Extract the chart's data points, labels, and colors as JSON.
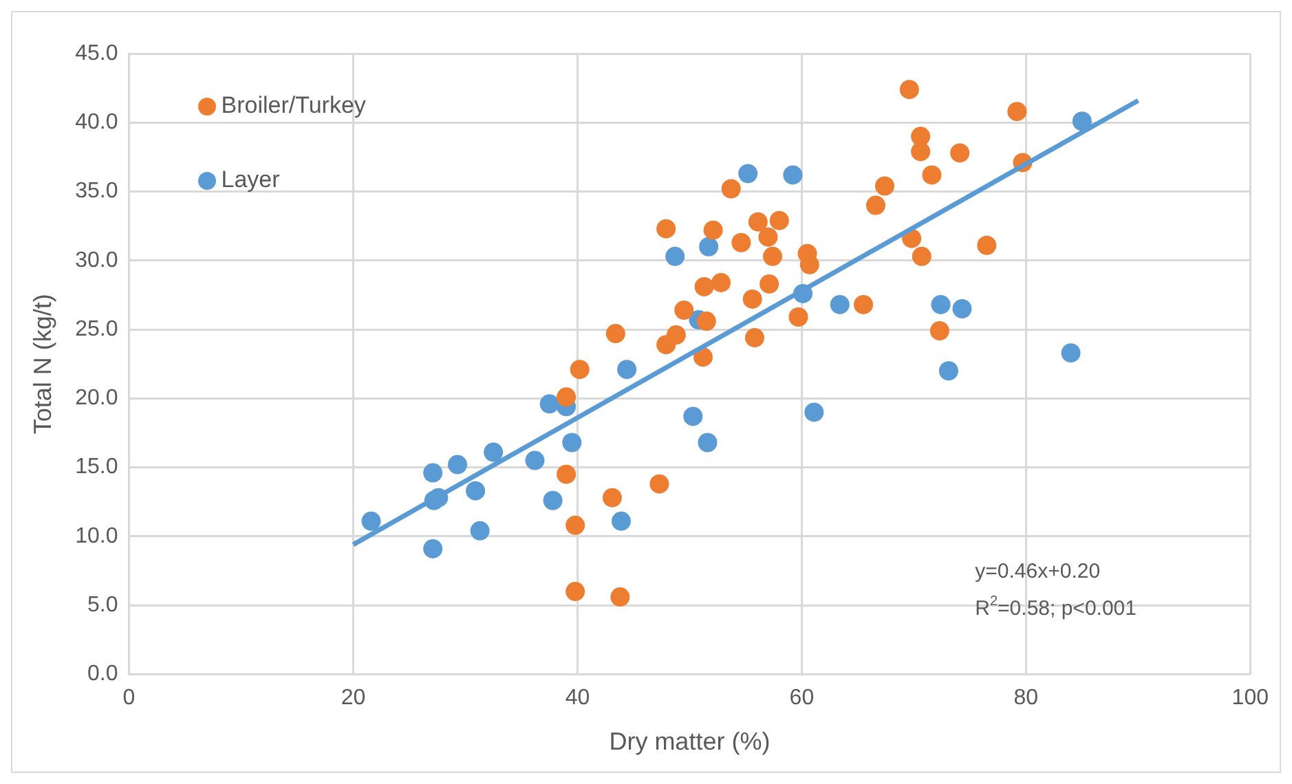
{
  "chart_data": {
    "type": "scatter",
    "xlabel": "Dry matter (%)",
    "ylabel": "Total N (kg/t)",
    "xlim": [
      0,
      100
    ],
    "xticks": [
      0,
      20,
      40,
      60,
      80,
      100
    ],
    "ylim": [
      0,
      45
    ],
    "yticks": [
      {
        "value": 0,
        "label": "0.0"
      },
      {
        "value": 5,
        "label": "5.0"
      },
      {
        "value": 10,
        "label": "10.0"
      },
      {
        "value": 15,
        "label": "15.0"
      },
      {
        "value": 20,
        "label": "20.0"
      },
      {
        "value": 25,
        "label": "25.0"
      },
      {
        "value": 30,
        "label": "30.0"
      },
      {
        "value": 35,
        "label": "35.0"
      },
      {
        "value": 40,
        "label": "40.0"
      },
      {
        "value": 45,
        "label": "45.0"
      }
    ],
    "grid": true,
    "legend": "top left",
    "annotations": [
      "y=0.46x+0.20",
      "R$^{2}$=0.58; p<0.001"
    ],
    "series": [
      {
        "name": "Broiler/Turkey",
        "color": "#ed7d31",
        "marker": "circle",
        "x": [
          69.6,
          79.2,
          70.6,
          70.6,
          74.1,
          71.6,
          67.4,
          53.7,
          79.7,
          66.6,
          47.9,
          52.1,
          56.1,
          58.0,
          57.0,
          54.6,
          60.5,
          60.7,
          57.4,
          69.8,
          70.7,
          76.5,
          57.1,
          52.8,
          51.3,
          49.5,
          51.5,
          55.6,
          65.5,
          59.7,
          43.4,
          48.8,
          47.9,
          55.8,
          51.2,
          72.3,
          40.2,
          39.0,
          39.0,
          43.1,
          47.3,
          39.8,
          39.8,
          43.8
        ],
        "values": [
          42.4,
          40.8,
          39.0,
          37.9,
          37.8,
          36.2,
          35.4,
          35.2,
          37.1,
          34.0,
          32.3,
          32.2,
          32.8,
          32.9,
          31.7,
          31.3,
          30.5,
          29.7,
          30.3,
          31.6,
          30.3,
          31.1,
          28.3,
          28.4,
          28.1,
          26.4,
          25.6,
          27.2,
          26.8,
          25.9,
          24.7,
          24.6,
          23.9,
          24.4,
          23.0,
          24.9,
          22.1,
          20.1,
          14.5,
          12.8,
          13.8,
          10.8,
          6.0,
          5.6
        ]
      },
      {
        "name": "Layer",
        "color": "#5b9bd5",
        "marker": "circle",
        "x": [
          55.2,
          59.2,
          85.0,
          48.7,
          51.7,
          50.8,
          60.1,
          63.4,
          72.4,
          74.3,
          73.1,
          84.0,
          61.1,
          44.4,
          50.3,
          51.6,
          37.5,
          39.0,
          39.5,
          36.2,
          32.5,
          29.3,
          27.1,
          30.9,
          27.6,
          27.2,
          37.8,
          31.3,
          27.1,
          21.6,
          43.9
        ],
        "values": [
          36.3,
          36.2,
          40.1,
          30.3,
          31.0,
          25.7,
          27.6,
          26.8,
          26.8,
          26.5,
          22.0,
          23.3,
          19.0,
          22.1,
          18.7,
          16.8,
          19.6,
          19.4,
          16.8,
          15.5,
          16.1,
          15.2,
          14.6,
          13.3,
          12.8,
          12.6,
          12.6,
          10.4,
          9.1,
          11.1,
          11.1
        ]
      },
      {
        "type": "line",
        "color": "#5b9bd5",
        "marker": "none",
        "x": [
          20,
          90
        ],
        "values": [
          9.4,
          41.6
        ]
      }
    ]
  }
}
